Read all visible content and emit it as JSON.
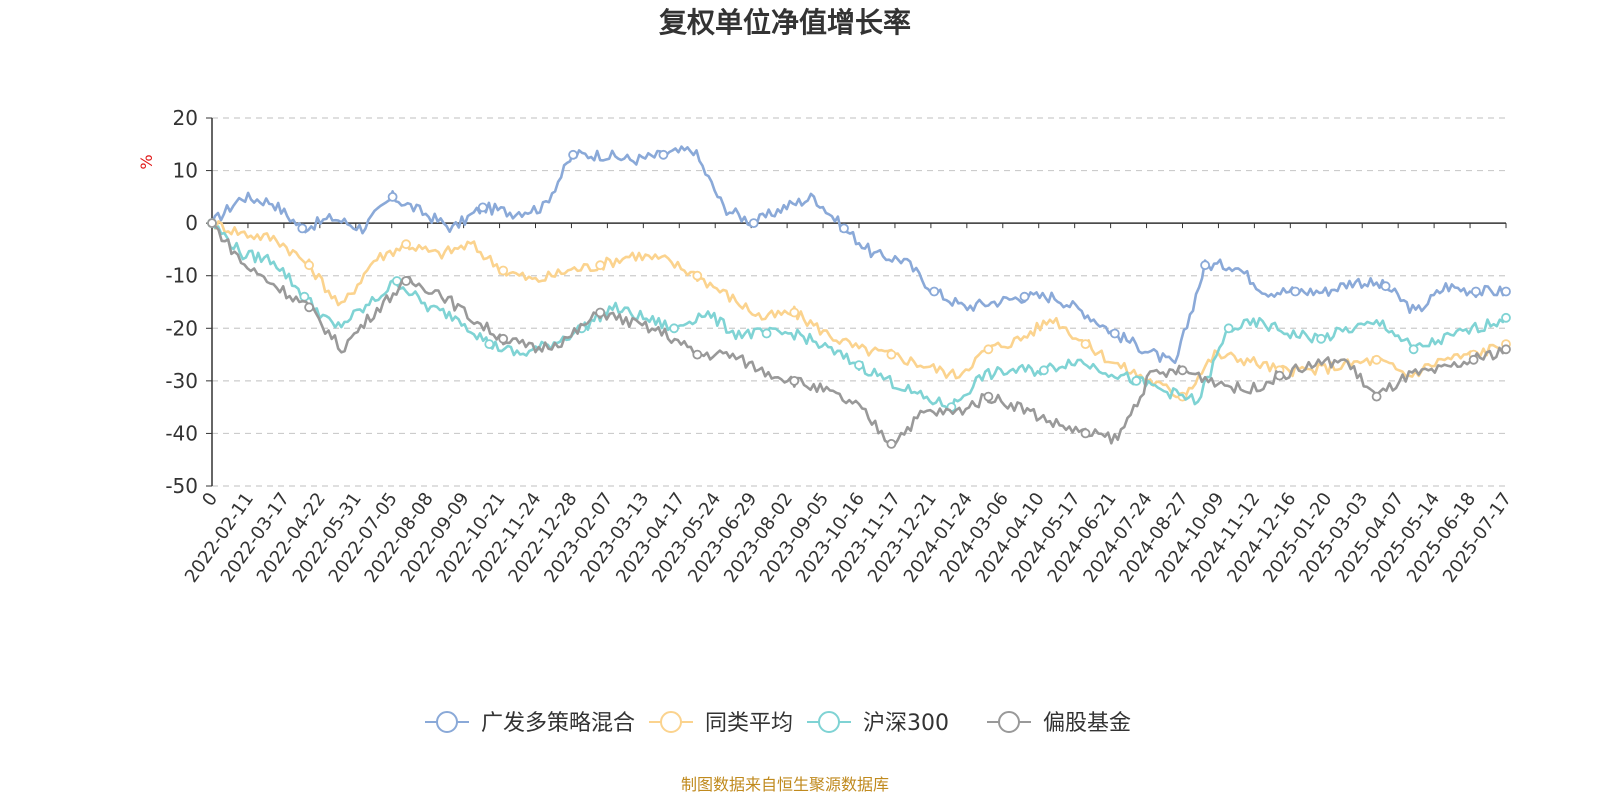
{
  "chart_data": {
    "type": "line",
    "title": "复权单位净值增长率",
    "ylabel": "%",
    "ylim": [
      -50,
      20
    ],
    "yticks": [
      20,
      10,
      0,
      -10,
      -20,
      -30,
      -40,
      -50
    ],
    "xticks": [
      "0",
      "2022-02-11",
      "2022-03-17",
      "2022-04-22",
      "2022-05-31",
      "2022-07-05",
      "2022-08-08",
      "2022-09-09",
      "2022-10-21",
      "2022-11-24",
      "2022-12-28",
      "2023-02-07",
      "2023-03-13",
      "2023-04-17",
      "2023-05-24",
      "2023-06-29",
      "2023-08-02",
      "2023-09-05",
      "2023-10-16",
      "2023-11-17",
      "2023-12-21",
      "2024-01-24",
      "2024-03-06",
      "2024-04-10",
      "2024-05-17",
      "2024-06-21",
      "2024-07-24",
      "2024-08-27",
      "2024-10-09",
      "2024-11-12",
      "2024-12-16",
      "2025-01-20",
      "2025-03-03",
      "2025-04-07",
      "2025-05-14",
      "2025-06-18",
      "2025-07-17"
    ],
    "grid": true,
    "legend_position": "bottom",
    "series": [
      {
        "name": "广发多策略混合",
        "color": "#8aa9d8",
        "values": [
          0,
          5,
          4,
          -1,
          1,
          -1,
          5,
          2,
          -1,
          3,
          2,
          3,
          13,
          13,
          12,
          13,
          14,
          3,
          0,
          3,
          5,
          -1,
          -6,
          -7,
          -13,
          -16,
          -15,
          -14,
          -14,
          -17,
          -21,
          -24,
          -27,
          -8,
          -8,
          -13,
          -13,
          -13,
          -11,
          -12,
          -17,
          -12,
          -13,
          -13
        ]
      },
      {
        "name": "同类平均",
        "color": "#fbd38e",
        "values": [
          0,
          -2,
          -3,
          -8,
          -16,
          -7,
          -4,
          -6,
          -4,
          -9,
          -11,
          -9,
          -8,
          -6,
          -7,
          -10,
          -14,
          -18,
          -17,
          -21,
          -24,
          -25,
          -27,
          -29,
          -24,
          -22,
          -18,
          -23,
          -27,
          -30,
          -33,
          -25,
          -26,
          -28,
          -28,
          -27,
          -26,
          -29,
          -26,
          -25,
          -23
        ]
      },
      {
        "name": "沪深300",
        "color": "#7fd3d4",
        "values": [
          0,
          -6,
          -7,
          -14,
          -20,
          -16,
          -11,
          -16,
          -18,
          -23,
          -25,
          -23,
          -20,
          -16,
          -18,
          -20,
          -17,
          -21,
          -21,
          -21,
          -24,
          -27,
          -30,
          -33,
          -35,
          -29,
          -28,
          -28,
          -26,
          -28,
          -30,
          -32,
          -34,
          -20,
          -19,
          -21,
          -22,
          -20,
          -19,
          -24,
          -22,
          -20,
          -18
        ]
      },
      {
        "name": "偏股基金",
        "color": "#999999",
        "values": [
          0,
          -8,
          -12,
          -16,
          -24,
          -17,
          -11,
          -13,
          -18,
          -22,
          -24,
          -22,
          -17,
          -19,
          -21,
          -25,
          -25,
          -28,
          -30,
          -32,
          -35,
          -42,
          -36,
          -36,
          -33,
          -35,
          -38,
          -40,
          -41,
          -29,
          -28,
          -30,
          -32,
          -29,
          -27,
          -26,
          -33,
          -29,
          -28,
          -26,
          -24
        ]
      }
    ]
  },
  "legend": {
    "items": [
      "广发多策略混合",
      "同类平均",
      "沪深300",
      "偏股基金"
    ]
  },
  "source_text": "制图数据来自恒生聚源数据库"
}
